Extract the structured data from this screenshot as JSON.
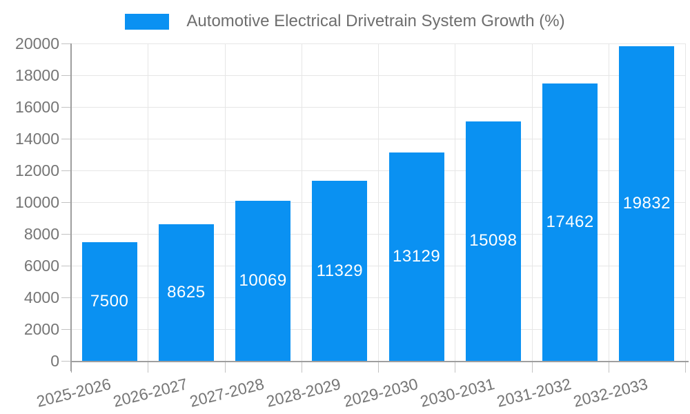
{
  "chart_data": {
    "type": "bar",
    "title": "Automotive Electrical Drivetrain System Growth (%)",
    "categories": [
      "2025-2026",
      "2026-2027",
      "2027-2028",
      "2028-2029",
      "2029-2030",
      "2030-2031",
      "2031-2032",
      "2032-2033"
    ],
    "values": [
      7500,
      8625,
      10069,
      11329,
      13129,
      15098,
      17462,
      19832
    ],
    "bar_value_labels": [
      "7500",
      "8625",
      "10069",
      "11329",
      "13129",
      "15098",
      "17462",
      "19832"
    ],
    "ylim": [
      0,
      20000
    ],
    "ytick_step": 2000,
    "ytick_labels": [
      "0",
      "2000",
      "4000",
      "6000",
      "8000",
      "10000",
      "12000",
      "14000",
      "16000",
      "18000",
      "20000"
    ],
    "xlabel": "",
    "ylabel": "",
    "grid": true,
    "legend_position": "top",
    "colors": {
      "bar": "#0a91f2",
      "bar_label": "#ffffff",
      "grid": "#e6e6e6",
      "axis": "#9e9e9e",
      "tick": "#c2c2c2",
      "axis_text": "#757575",
      "legend_text": "#6e6e6e",
      "background": "#ffffff"
    }
  }
}
